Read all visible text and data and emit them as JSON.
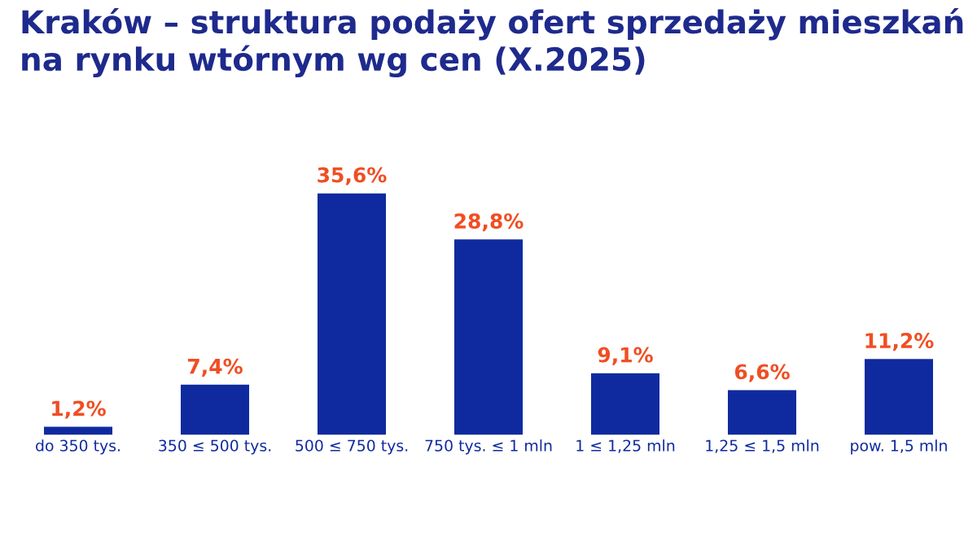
{
  "chart_data": {
    "type": "bar",
    "title": "Kraków – struktura podaży ofert sprzedaży mieszkań na rynku wtórnym wg cen (X.2025)",
    "categories": [
      "do 350 tys.",
      "350 ≤ 500 tys.",
      "500 ≤ 750 tys.",
      "750 tys. ≤ 1 mln",
      "1 ≤ 1,25 mln",
      "1,25 ≤ 1,5 mln",
      "pow. 1,5 mln"
    ],
    "values": [
      1.2,
      7.4,
      35.6,
      28.8,
      9.1,
      6.6,
      11.2
    ],
    "value_labels": [
      "1,2%",
      "7,4%",
      "35,6%",
      "28,8%",
      "9,1%",
      "6,6%",
      "11,2%"
    ],
    "color": "#0f2a9e",
    "grid": false,
    "legend": false
  }
}
